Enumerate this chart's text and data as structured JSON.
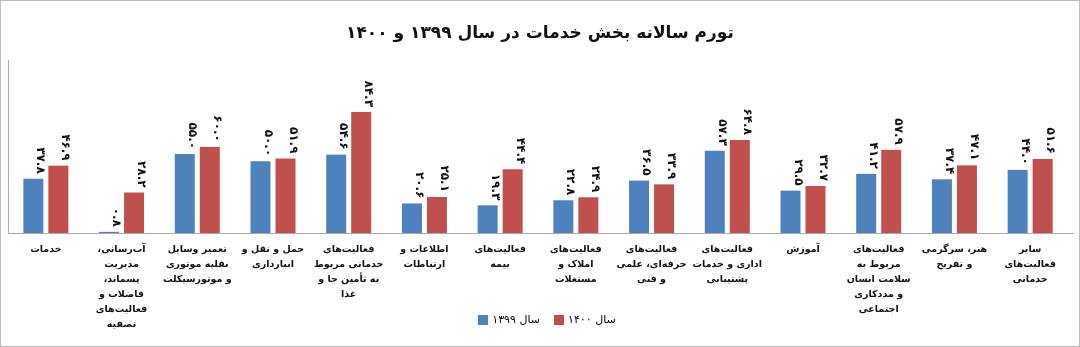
{
  "chart_data": {
    "type": "bar",
    "title": "تورم سالانه بخش خدمات در سال ۱۳۹۹ و ۱۴۰۰",
    "categories": [
      "خدمات",
      "آب‌رسانی، مدیریت پسماند، فاضلاب و فعالیت‌های تصفیه",
      "تعمیر وسایل نقلیه موتوری و موتورسیکلت",
      "حمل و نقل و انبارداری",
      "فعالیت‌های خدماتی مربوط به تأمین جا و غذا",
      "اطلاعات و ارتباطات",
      "فعالیت‌های بیمه",
      "فعالیت‌های املاک و مستغلات",
      "فعالیت‌های حرفه‌ای، علمی و فنی",
      "فعالیت‌های اداری و خدمات پشتیبانی",
      "آموزش",
      "فعالیت‌های مربوط به سلامت انسان و مددکاری اجتماعی",
      "هنر، سرگرمی و تفریح",
      "سایر فعالیت‌های خدماتی"
    ],
    "series": [
      {
        "name": "سال ۱۳۹۹",
        "color": "#4f81bd",
        "values": [
          37.8,
          0.8,
          55.0,
          50.0,
          54.6,
          20.6,
          19.3,
          22.8,
          36.5,
          57.3,
          29.5,
          41.2,
          37.4,
          44.0
        ],
        "value_labels": [
          "۳۷.۸",
          "۰.۸",
          "۵۵.۰",
          "۵۰.۰",
          "۵۴.۶",
          "۲۰.۶",
          "۱۹.۳",
          "۲۲.۸",
          "۳۶.۵",
          "۵۷.۳",
          "۲۹.۵",
          "۴۱.۲",
          "۳۷.۴",
          "۴۴.۰"
        ]
      },
      {
        "name": "سال ۱۴۰۰",
        "color": "#c0504d",
        "values": [
          46.9,
          28.2,
          60.0,
          51.9,
          84.3,
          25.1,
          44.4,
          24.9,
          33.9,
          64.8,
          32.7,
          57.9,
          47.1,
          51.6
        ],
        "value_labels": [
          "۴۶.۹",
          "۲۸.۲",
          "۶۰.۰",
          "۵۱.۹",
          "۸۴.۳",
          "۲۵.۱",
          "۴۴.۴",
          "۲۴.۹",
          "۳۳.۹",
          "۶۴.۸",
          "۳۲.۷",
          "۵۷.۹",
          "۴۷.۱",
          "۵۱.۶"
        ]
      }
    ],
    "legend": "bottom",
    "tick_labels": "x"
  }
}
